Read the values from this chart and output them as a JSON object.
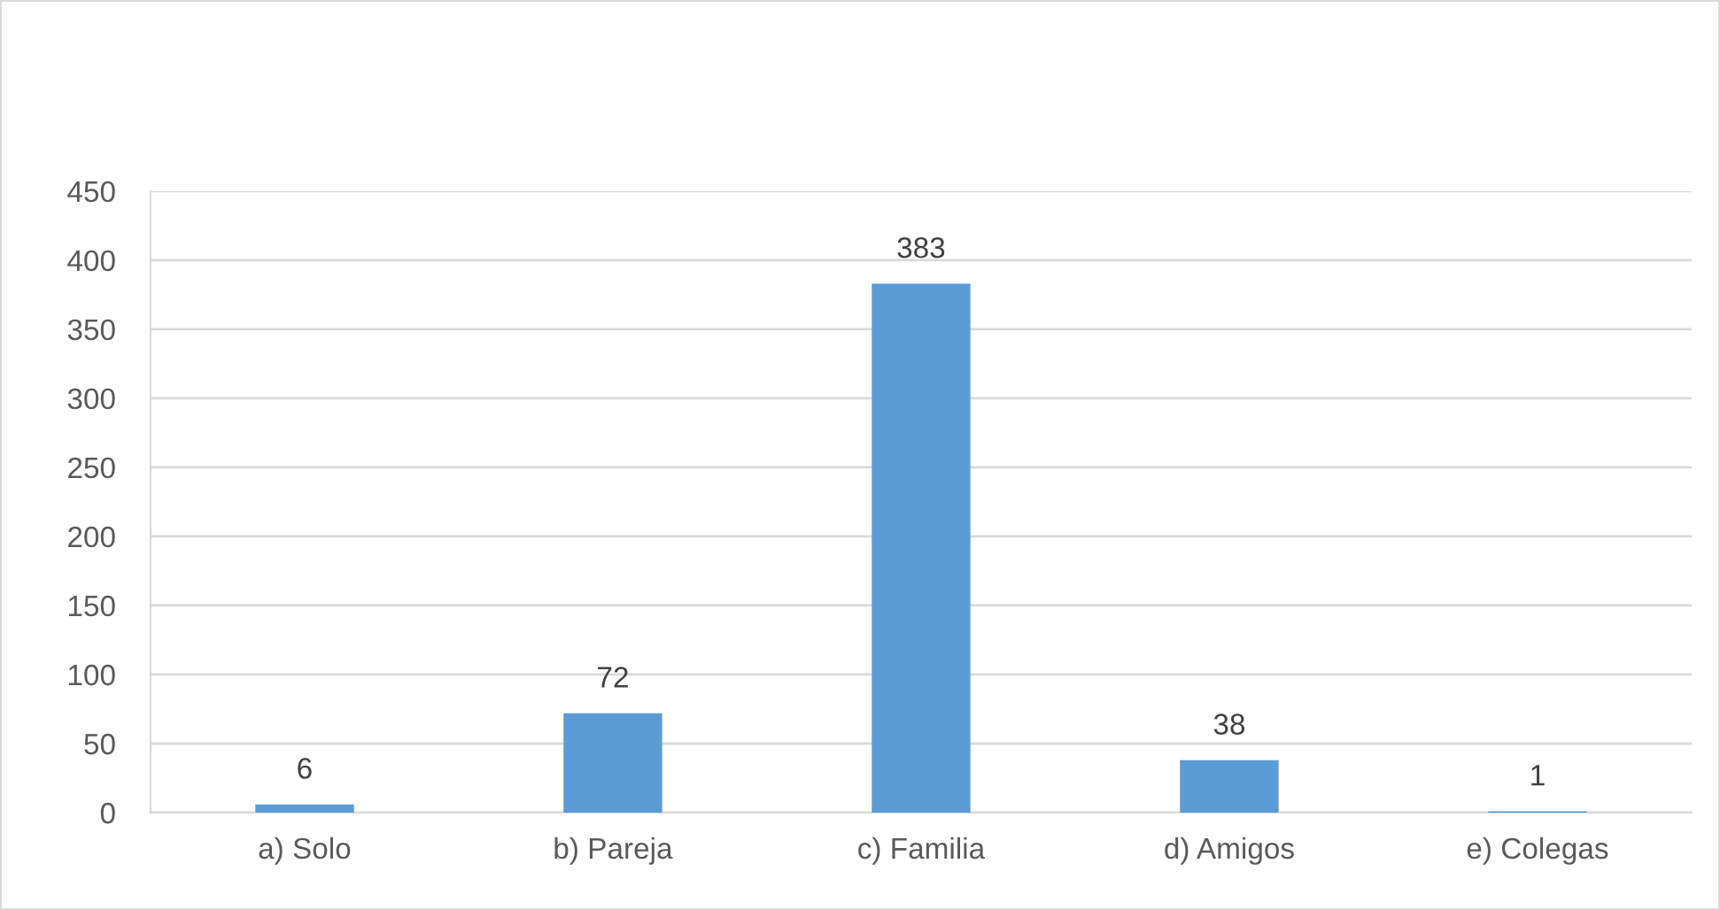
{
  "chart_data": {
    "type": "bar",
    "categories": [
      "a) Solo",
      "b) Pareja",
      "c) Familia",
      "d) Amigos",
      "e) Colegas"
    ],
    "values": [
      6,
      72,
      383,
      38,
      1
    ],
    "color": "#5b9bd5",
    "ylim": [
      0,
      450
    ],
    "yticks": [
      0,
      50,
      100,
      150,
      200,
      250,
      300,
      350,
      400,
      450
    ],
    "grid": "y",
    "data_labels": true,
    "legend": false
  }
}
